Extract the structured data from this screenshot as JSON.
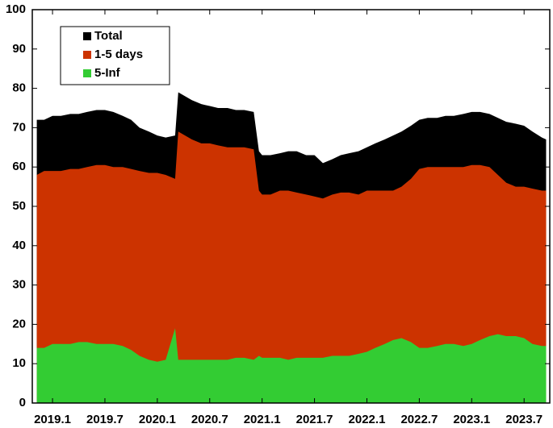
{
  "chart_data": {
    "type": "area",
    "x": [
      2018.85,
      2018.92,
      2019.0,
      2019.08,
      2019.17,
      2019.25,
      2019.33,
      2019.42,
      2019.5,
      2019.58,
      2019.67,
      2019.75,
      2019.83,
      2019.92,
      2020.0,
      2020.08,
      2020.17,
      2020.2,
      2020.33,
      2020.42,
      2020.5,
      2020.58,
      2020.67,
      2020.75,
      2020.83,
      2020.92,
      2020.97,
      2021.0,
      2021.08,
      2021.17,
      2021.25,
      2021.33,
      2021.42,
      2021.5,
      2021.58,
      2021.67,
      2021.75,
      2021.83,
      2021.92,
      2022.0,
      2022.08,
      2022.17,
      2022.25,
      2022.33,
      2022.42,
      2022.5,
      2022.58,
      2022.67,
      2022.75,
      2022.83,
      2022.92,
      2023.0,
      2023.08,
      2023.17,
      2023.25,
      2023.33,
      2023.42,
      2023.5,
      2023.58,
      2023.67,
      2023.71
    ],
    "series": [
      {
        "name": "Total",
        "color": "#000000",
        "values": [
          72,
          72,
          73,
          73,
          73.5,
          73.5,
          74,
          74.5,
          74.5,
          74,
          73,
          72,
          70,
          69,
          68,
          67.5,
          68,
          79,
          77,
          76,
          75.5,
          75,
          75,
          74.5,
          74.5,
          74,
          64,
          63,
          63,
          63.5,
          64,
          64,
          63,
          63,
          61,
          62,
          63,
          63.5,
          64,
          65,
          66,
          67,
          68,
          69,
          70.5,
          72,
          72.5,
          72.5,
          73,
          73,
          73.5,
          74,
          74,
          73.5,
          72.5,
          71.5,
          71,
          70.5,
          69,
          67.5,
          67
        ]
      },
      {
        "name": "1-5 days",
        "color": "#cc3300",
        "values": [
          58,
          59,
          59,
          59,
          59.5,
          59.5,
          60,
          60.5,
          60.5,
          60,
          60,
          59.5,
          59,
          58.5,
          58.5,
          58,
          57,
          69,
          67,
          66,
          66,
          65.5,
          65,
          65,
          65,
          64.5,
          54,
          53,
          53,
          54,
          54,
          53.5,
          53,
          52.5,
          52,
          53,
          53.5,
          53.5,
          53,
          54,
          54,
          54,
          54,
          55,
          57,
          59.5,
          60,
          60,
          60,
          60,
          60,
          60.5,
          60.5,
          60,
          58,
          56,
          55,
          55,
          54.5,
          54,
          54
        ]
      },
      {
        "name": "5-Inf",
        "color": "#33cc33",
        "values": [
          14,
          14,
          15,
          15,
          15,
          15.5,
          15.5,
          15,
          15,
          15,
          14.5,
          13.5,
          12,
          11,
          10.5,
          11,
          19,
          11,
          11,
          11,
          11,
          11,
          11,
          11.5,
          11.5,
          11,
          12,
          11.5,
          11.5,
          11.5,
          11,
          11.5,
          11.5,
          11.5,
          11.5,
          12,
          12,
          12,
          12.5,
          13,
          14,
          15,
          16,
          16.5,
          15.5,
          14,
          14,
          14.5,
          15,
          15,
          14.5,
          15,
          16,
          17,
          17.5,
          17,
          17,
          16.5,
          15,
          14.5,
          14.5
        ]
      }
    ],
    "xlim": [
      2018.807,
      2023.745
    ],
    "xticks": [
      {
        "value": 2019.0,
        "label": "2019.1"
      },
      {
        "value": 2019.5,
        "label": "2019.7"
      },
      {
        "value": 2020.0,
        "label": "2020.1"
      },
      {
        "value": 2020.5,
        "label": "2020.7"
      },
      {
        "value": 2021.0,
        "label": "2021.1"
      },
      {
        "value": 2021.5,
        "label": "2021.7"
      },
      {
        "value": 2022.0,
        "label": "2022.1"
      },
      {
        "value": 2022.5,
        "label": "2022.7"
      },
      {
        "value": 2023.0,
        "label": "2023.1"
      },
      {
        "value": 2023.5,
        "label": "2023.7"
      }
    ],
    "ylim": [
      0,
      100
    ],
    "yticks": [
      0,
      10,
      20,
      30,
      40,
      50,
      60,
      70,
      80,
      90,
      100
    ],
    "legend": "upper left"
  }
}
